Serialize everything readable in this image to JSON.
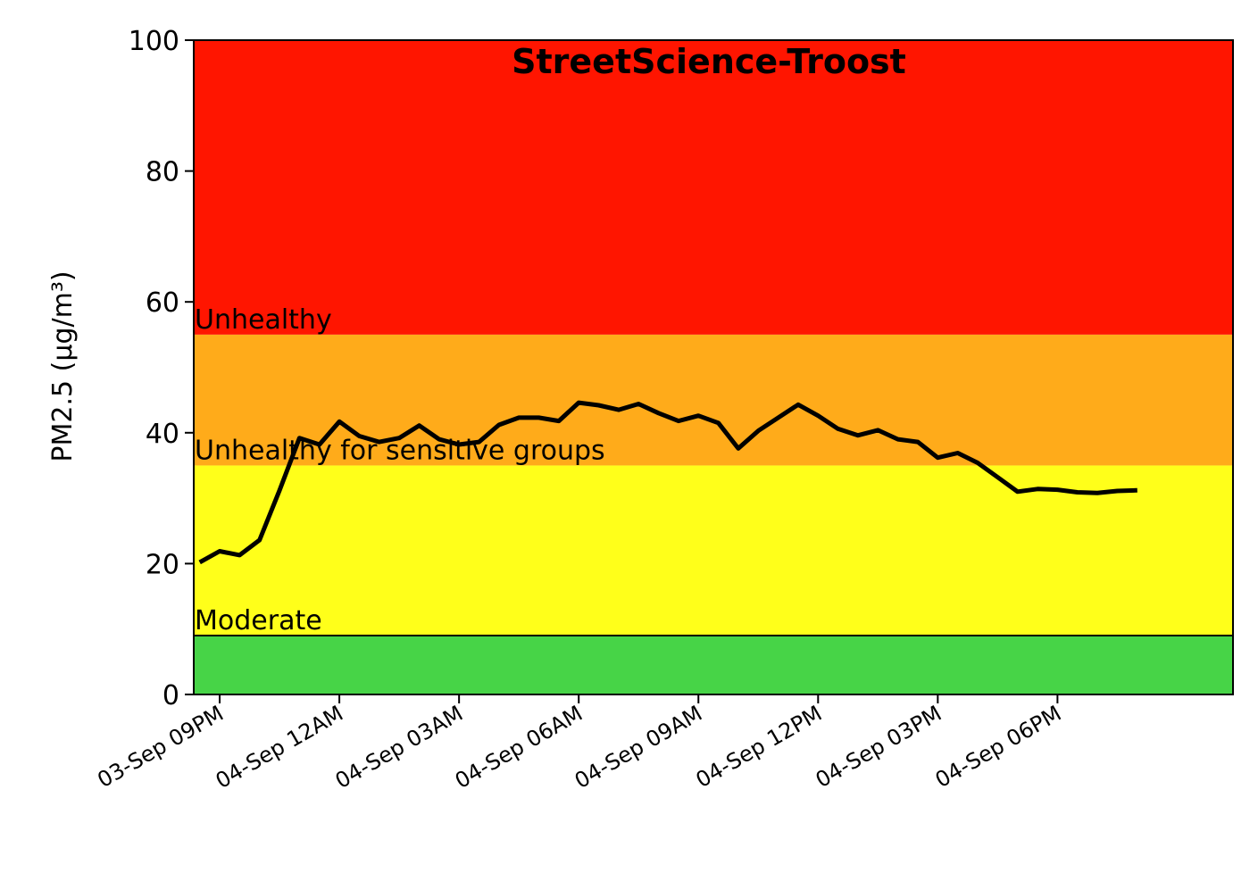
{
  "chart_data": {
    "type": "line",
    "title": "StreetScience-Troost",
    "ylabel": "PM2.5 (µg/m³)",
    "xlabel": "",
    "ylim": [
      0,
      100
    ],
    "yticks": [
      0,
      20,
      40,
      60,
      80,
      100
    ],
    "xticks": [
      {
        "hour": 0,
        "label": "03-Sep 09PM"
      },
      {
        "hour": 3,
        "label": "04-Sep 12AM"
      },
      {
        "hour": 6,
        "label": "04-Sep 03AM"
      },
      {
        "hour": 9,
        "label": "04-Sep 06AM"
      },
      {
        "hour": 12,
        "label": "04-Sep 09AM"
      },
      {
        "hour": 15,
        "label": "04-Sep 12PM"
      },
      {
        "hour": 18,
        "label": "04-Sep 03PM"
      },
      {
        "hour": 21,
        "label": "04-Sep 06PM"
      }
    ],
    "bands": [
      {
        "name": "Moderate",
        "from": 9,
        "to": 35,
        "color": "#ffff1a"
      },
      {
        "name": "Unhealthy for sensitive groups",
        "from": 35,
        "to": 55,
        "color": "#ffab1a"
      },
      {
        "name": "Unhealthy",
        "from": 55,
        "to": 100,
        "color": "#ff1500"
      },
      {
        "name": "",
        "from": 0,
        "to": 9,
        "color": "#47d447"
      }
    ],
    "line_color": "#000000",
    "series": [
      {
        "x": [
          -0.5,
          0,
          0.5,
          1,
          1.5,
          2,
          2.5,
          3,
          3.5,
          4,
          4.5,
          5,
          5.5,
          6,
          6.5,
          7,
          7.5,
          8,
          8.5,
          9,
          9.5,
          10,
          10.5,
          11,
          11.5,
          12,
          12.5,
          13,
          13.5,
          14,
          14.5,
          15,
          15.5,
          16,
          16.5,
          17,
          17.5,
          18,
          18.5,
          19,
          19.5,
          20,
          20.5,
          21,
          21.5,
          22,
          22.5,
          23
        ],
        "values": [
          20.2,
          21.9,
          21.3,
          23.6,
          31.2,
          39.2,
          38.2,
          41.7,
          39.5,
          38.6,
          39.2,
          41.1,
          39.0,
          38.2,
          38.6,
          41.2,
          42.3,
          42.3,
          41.8,
          44.6,
          44.2,
          43.5,
          44.4,
          43.0,
          41.8,
          42.6,
          41.5,
          37.6,
          40.3,
          42.3,
          44.3,
          42.6,
          40.6,
          39.6,
          40.4,
          39.0,
          38.6,
          36.2,
          36.9,
          35.4,
          33.2,
          31.0,
          31.4,
          31.3,
          30.9,
          30.8,
          31.1,
          31.2
        ]
      }
    ]
  }
}
